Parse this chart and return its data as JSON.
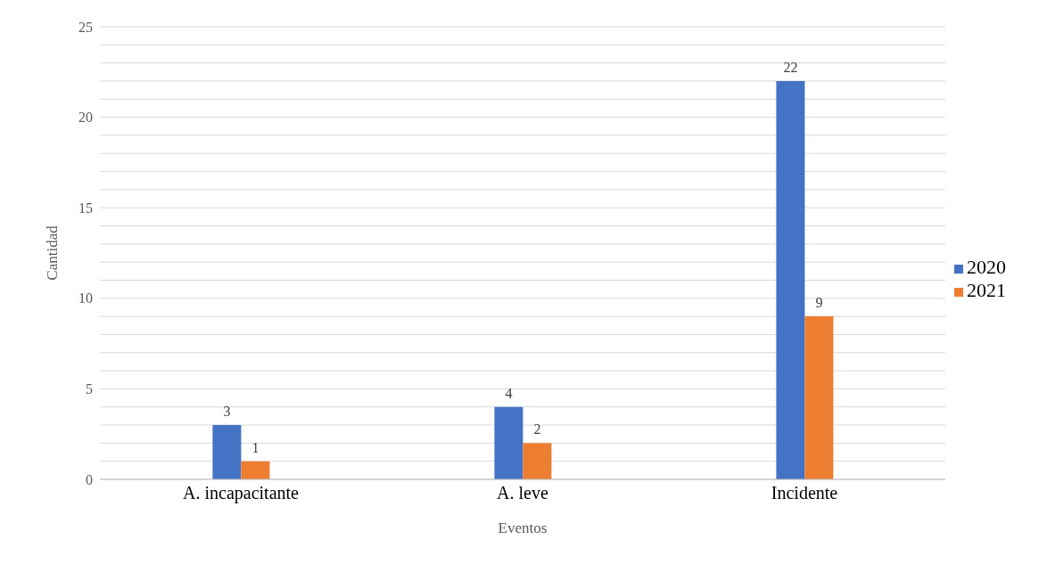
{
  "chart_data": {
    "type": "bar",
    "xlabel": "Eventos",
    "ylabel": "Cantidad",
    "categories": [
      "A. incapacitante",
      "A. leve",
      "Incidente"
    ],
    "series": [
      {
        "name": "2020",
        "color": "#4472c4",
        "values": [
          3,
          4,
          22
        ]
      },
      {
        "name": "2021",
        "color": "#ed7d31",
        "values": [
          1,
          2,
          9
        ]
      }
    ],
    "ylim": [
      0,
      25
    ],
    "yticks": [
      0,
      {
        "value": 1,
        "label": null
      },
      {
        "value": 2,
        "label": null
      },
      {
        "value": 3,
        "label": null
      },
      {
        "value": 4,
        "label": null
      },
      5,
      {
        "value": 6,
        "label": null
      },
      {
        "value": 7,
        "label": null
      },
      {
        "value": 8,
        "label": null
      },
      {
        "value": 9,
        "label": null
      },
      10,
      {
        "value": 11,
        "label": null
      },
      {
        "value": 12,
        "label": null
      },
      {
        "value": 13,
        "label": null
      },
      {
        "value": 14,
        "label": null
      },
      15,
      {
        "value": 16,
        "label": null
      },
      {
        "value": 17,
        "label": null
      },
      {
        "value": 18,
        "label": null
      },
      {
        "value": 19,
        "label": null
      },
      20,
      {
        "value": 21,
        "label": null
      },
      {
        "value": 22,
        "label": null
      },
      {
        "value": 23,
        "label": null
      },
      {
        "value": 24,
        "label": null
      },
      25
    ],
    "grid": "y",
    "legend": "right",
    "data_labels": true
  }
}
